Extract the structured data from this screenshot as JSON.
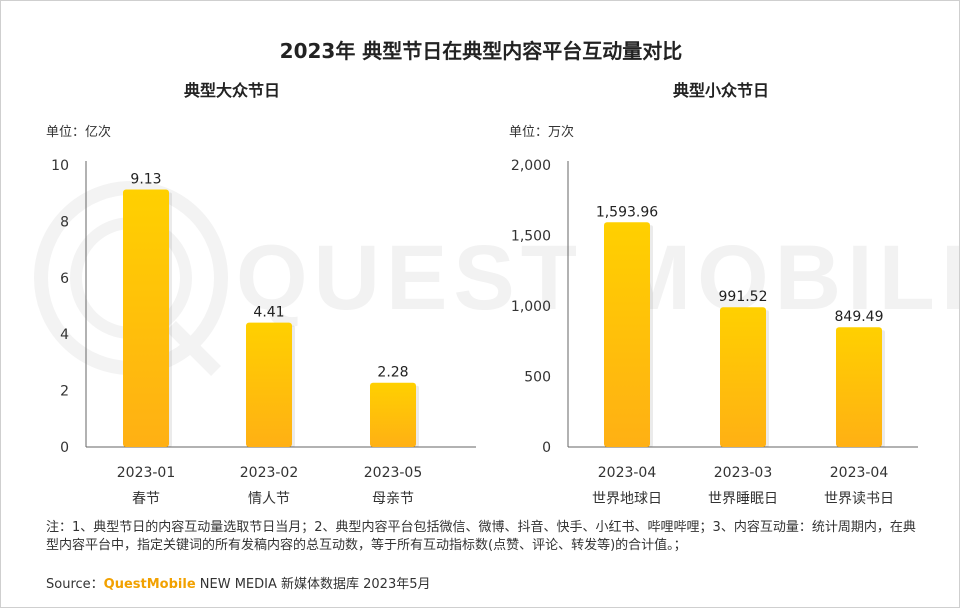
{
  "title": "2023年 典型节日在典型内容平台互动量对比",
  "watermark": "QUEST MOBILE",
  "chart_data": [
    {
      "type": "bar",
      "title": "典型大众节日",
      "unit_label": "单位：亿次",
      "ylim": [
        0,
        10
      ],
      "yticks": [
        "0",
        "2",
        "4",
        "6",
        "8",
        "10"
      ],
      "categories": [
        "2023-01",
        "2023-02",
        "2023-05"
      ],
      "category_sublabels": [
        "春节",
        "情人节",
        "母亲节"
      ],
      "values": [
        9.13,
        4.41,
        2.28
      ],
      "value_labels": [
        "9.13",
        "4.41",
        "2.28"
      ]
    },
    {
      "type": "bar",
      "title": "典型小众节日",
      "unit_label": "单位：万次",
      "ylim": [
        0,
        2000
      ],
      "yticks": [
        "0",
        "500",
        "1,000",
        "1,500",
        "2,000"
      ],
      "categories": [
        "2023-04",
        "2023-03",
        "2023-04"
      ],
      "category_sublabels": [
        "世界地球日",
        "世界睡眠日",
        "世界读书日"
      ],
      "values": [
        1593.96,
        991.52,
        849.49
      ],
      "value_labels": [
        "1,593.96",
        "991.52",
        "849.49"
      ]
    }
  ],
  "colors": {
    "bar_top": "#ffd000",
    "bar_bottom": "#ffb014",
    "axis": "#666666",
    "brand": "#f2a100"
  },
  "note": "注：1、典型节日的内容互动量选取节日当月；2、典型内容平台包括微信、微博、抖音、快手、小红书、哔哩哔哩；3、内容互动量：统计周期内，在典型内容平台中，指定关键词的所有发稿内容的总互动数，等于所有互动指标数(点赞、评论、转发等)的合计值。；",
  "source": {
    "prefix": "Source：",
    "brand": "QuestMobile",
    "suffix": " NEW MEDIA 新媒体数据库 2023年5月"
  }
}
